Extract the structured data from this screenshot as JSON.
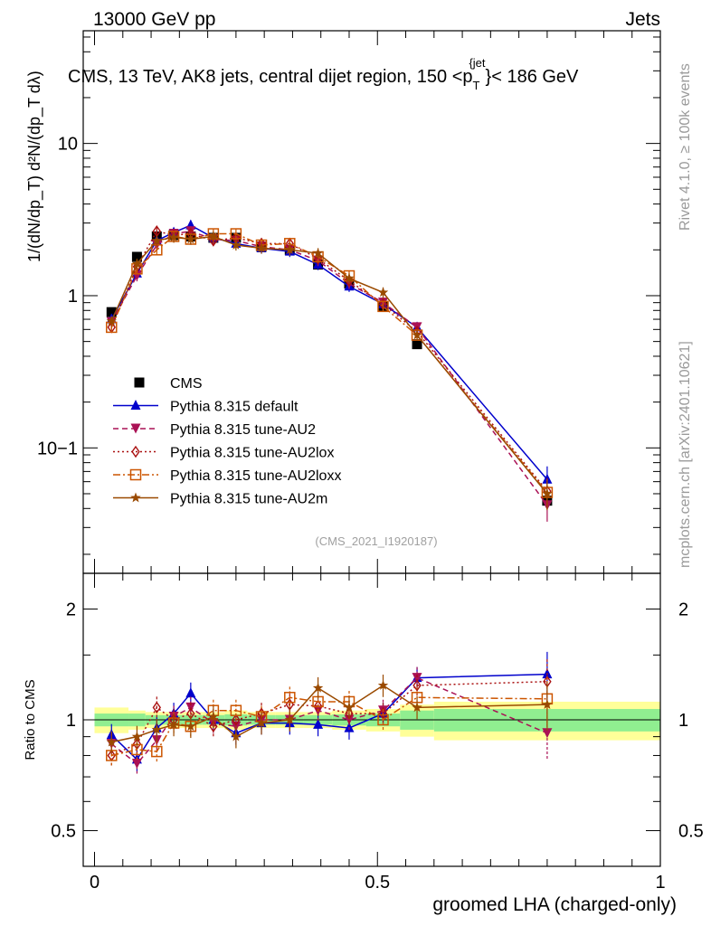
{
  "header": {
    "energy_label": "13000 GeV pp",
    "process_label": "Jets"
  },
  "side_labels": {
    "rivet": "Rivet 4.1.0, ≥ 100k events",
    "mcplots": "mcplots.cern.ch [arXiv:2401.10621]"
  },
  "chart_data": [
    {
      "type": "line",
      "title": "CMS, 13 TeV, AK8 jets, central dijet region, 150 <p_T^{jet}< 186 GeV",
      "title_parts": {
        "main": "CMS, 13 TeV, AK8 jets, central dijet region, 150 <p",
        "sub": "T",
        "sup": "{jet",
        "tail": "}< 186 GeV"
      },
      "ylabel": "1/(dN/dp_T) d²N/(dp_T dλ)",
      "yscale": "log",
      "ylim": [
        0.015,
        55
      ],
      "xlim": [
        -0.02,
        1.0
      ],
      "ytick_labels": [
        "10−1",
        "1",
        "10"
      ],
      "analysis_tag": "(CMS_2021_I1920187)",
      "legend_position": "center-left",
      "x": [
        0.03,
        0.075,
        0.11,
        0.14,
        0.17,
        0.21,
        0.25,
        0.295,
        0.345,
        0.395,
        0.45,
        0.51,
        0.57,
        0.8
      ],
      "series": [
        {
          "name": "CMS",
          "color": "#000000",
          "marker": "square",
          "style": "none",
          "values": [
            0.78,
            1.8,
            2.45,
            2.5,
            2.45,
            2.4,
            2.4,
            2.1,
            2.0,
            1.6,
            1.2,
            0.85,
            0.48,
            0.045
          ]
        },
        {
          "name": "Pythia 8.315 default",
          "color": "#0000cc",
          "marker": "triangle-up",
          "style": "solid",
          "values": [
            0.7,
            1.4,
            2.3,
            2.6,
            2.9,
            2.4,
            2.2,
            2.05,
            1.95,
            1.6,
            1.15,
            0.88,
            0.62,
            0.062
          ]
        },
        {
          "name": "Pythia 8.315 tune-AU2",
          "color": "#aa1155",
          "marker": "triangle-down",
          "style": "dashed",
          "values": [
            0.67,
            1.35,
            2.15,
            2.55,
            2.65,
            2.35,
            2.3,
            2.1,
            2.0,
            1.7,
            1.2,
            0.9,
            0.62,
            0.042
          ]
        },
        {
          "name": "Pythia 8.315 tune-AU2lox",
          "color": "#aa1111",
          "marker": "diamond-open",
          "style": "dashdot",
          "values": [
            0.62,
            1.55,
            2.65,
            2.5,
            2.55,
            2.3,
            2.4,
            2.2,
            2.2,
            1.75,
            1.25,
            0.88,
            0.58,
            0.052
          ]
        },
        {
          "name": "Pythia 8.315 tune-AU2loxx",
          "color": "#cc5500",
          "marker": "square-open",
          "style": "dashdotdot",
          "values": [
            0.62,
            1.5,
            2.0,
            2.45,
            2.35,
            2.55,
            2.55,
            2.15,
            2.2,
            1.8,
            1.35,
            0.85,
            0.55,
            0.051
          ]
        },
        {
          "name": "Pythia 8.315 tune-AU2m",
          "color": "#9a4a00",
          "marker": "star",
          "style": "solid",
          "values": [
            0.68,
            1.62,
            2.3,
            2.42,
            2.35,
            2.45,
            2.15,
            2.05,
            2.0,
            1.9,
            1.3,
            1.05,
            0.55,
            0.05
          ]
        }
      ]
    },
    {
      "type": "line",
      "title": "",
      "xlabel": "groomed LHA (charged-only)",
      "ylabel": "Ratio to CMS",
      "yscale": "log",
      "ylim": [
        0.4,
        2.5
      ],
      "xlim": [
        -0.02,
        1.0
      ],
      "xtick_labels": [
        "0",
        "0.5",
        "1"
      ],
      "ytick_labels": [
        "0.5",
        "1",
        "2"
      ],
      "bands": {
        "edges": [
          0.0,
          0.06,
          0.09,
          0.125,
          0.155,
          0.19,
          0.23,
          0.27,
          0.32,
          0.37,
          0.42,
          0.48,
          0.54,
          0.6,
          1.0
        ],
        "inner_half_width": [
          0.04,
          0.04,
          0.03,
          0.03,
          0.03,
          0.03,
          0.035,
          0.03,
          0.03,
          0.03,
          0.035,
          0.04,
          0.06,
          0.07
        ],
        "outer_half_width": [
          0.08,
          0.06,
          0.05,
          0.05,
          0.05,
          0.05,
          0.06,
          0.05,
          0.05,
          0.05,
          0.06,
          0.07,
          0.1,
          0.12
        ],
        "inner_color": "#90ee90",
        "outer_color": "#ffff99"
      },
      "series": [
        {
          "name": "Pythia 8.315 default",
          "values": [
            0.91,
            0.78,
            0.95,
            1.04,
            1.18,
            1.0,
            0.92,
            0.98,
            0.98,
            0.97,
            0.95,
            1.04,
            1.3,
            1.33
          ]
        },
        {
          "name": "Pythia 8.315 tune-AU2",
          "values": [
            0.86,
            0.76,
            0.88,
            1.02,
            1.08,
            0.98,
            0.96,
            1.0,
            1.0,
            1.06,
            1.0,
            1.06,
            1.3,
            0.92
          ]
        },
        {
          "name": "Pythia 8.315 tune-AU2lox",
          "values": [
            0.8,
            0.86,
            1.08,
            1.0,
            1.04,
            0.96,
            1.0,
            1.04,
            1.1,
            1.09,
            1.04,
            1.04,
            1.24,
            1.27
          ]
        },
        {
          "name": "Pythia 8.315 tune-AU2loxx",
          "values": [
            0.8,
            0.83,
            0.82,
            0.98,
            0.96,
            1.06,
            1.06,
            1.02,
            1.15,
            1.12,
            1.12,
            1.0,
            1.15,
            1.14
          ]
        },
        {
          "name": "Pythia 8.315 tune-AU2m",
          "values": [
            0.87,
            0.9,
            0.94,
            0.97,
            0.96,
            1.02,
            0.9,
            0.98,
            1.0,
            1.22,
            1.08,
            1.24,
            1.08,
            1.1
          ]
        }
      ]
    }
  ]
}
